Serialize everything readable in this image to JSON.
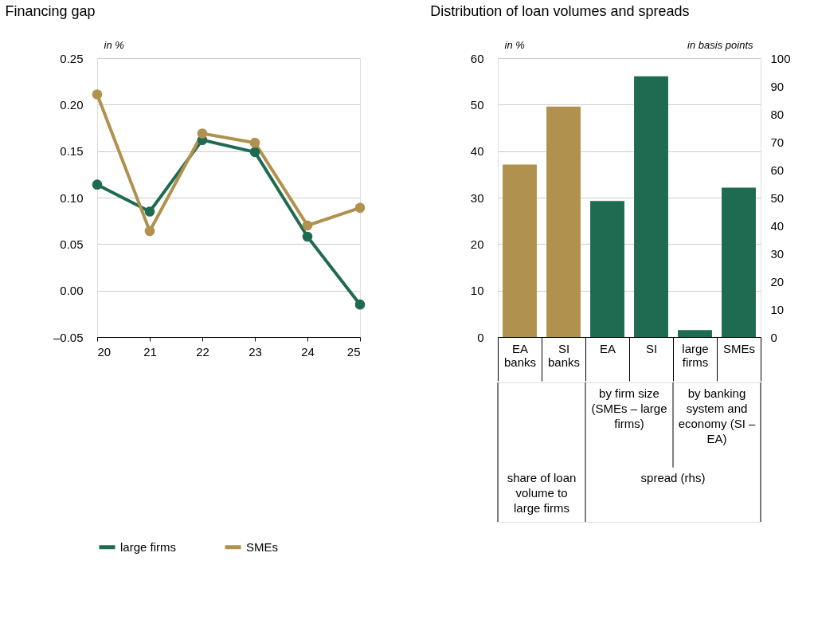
{
  "chart_data": [
    {
      "type": "line",
      "title": "Financing gap",
      "ylabel": "in %",
      "x": [
        20,
        21,
        22,
        23,
        24,
        25
      ],
      "xlim": [
        20,
        25
      ],
      "xticks": [
        20,
        21,
        22,
        23,
        24,
        25
      ],
      "ylim": [
        -0.05,
        0.25
      ],
      "yticks": [
        {
          "value": -0.05,
          "label": "–0.05"
        },
        {
          "value": 0,
          "label": "0.00"
        },
        {
          "value": 0.05,
          "label": "0.05"
        },
        {
          "value": 0.1,
          "label": "0.10"
        },
        {
          "value": 0.15,
          "label": "0.15"
        },
        {
          "value": 0.2,
          "label": "0.20"
        },
        {
          "value": 0.25,
          "label": "0.25"
        }
      ],
      "grid": "y",
      "legend": "bottom",
      "marker": "circle",
      "line_style": "solid",
      "series": [
        {
          "name": "large firms",
          "color": "#1f6b52",
          "values": [
            0.114,
            0.085,
            0.162,
            0.149,
            0.058,
            -0.015
          ]
        },
        {
          "name": "SMEs",
          "color": "#b0924e",
          "values": [
            0.211,
            0.064,
            0.169,
            0.159,
            0.07,
            0.089
          ]
        }
      ]
    },
    {
      "type": "bar",
      "title": "Distribution of loan volumes and spreads",
      "ylabel": "in %",
      "y2label": "in basis points",
      "categories": [
        "EA banks",
        "SI banks",
        "EA",
        "SI",
        "large firms",
        "SMEs"
      ],
      "ylim": [
        0,
        60
      ],
      "yticks": [
        0,
        10,
        20,
        30,
        40,
        50,
        60
      ],
      "y2lim": [
        0,
        100
      ],
      "y2ticks": [
        0,
        10,
        20,
        30,
        40,
        50,
        60,
        70,
        80,
        90,
        100
      ],
      "grid": "y",
      "series": [
        {
          "color": "#b0924e",
          "values": [
            37.1,
            49.6,
            null,
            null,
            null,
            null
          ]
        },
        {
          "color": "#1f6b52",
          "axis": "y2",
          "values": [
            null,
            null,
            48.8,
            93.5,
            2.5,
            53.6
          ]
        }
      ],
      "annotations": [
        "by firm size (SMEs – large firms)",
        "by banking system and economy (SI – EA)",
        "share of loan volume to large firms",
        "spread (rhs)"
      ]
    }
  ]
}
